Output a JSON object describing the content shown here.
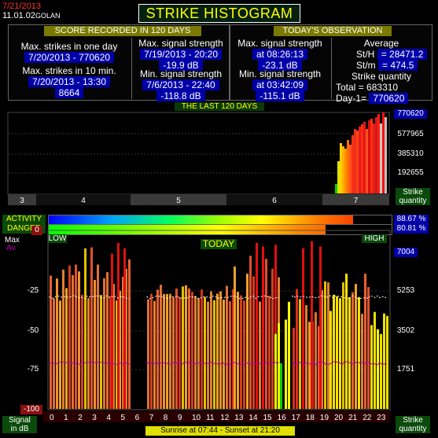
{
  "header": {
    "date": "7/21/2013",
    "version": "11.01.02",
    "station": "GOLAN",
    "title": "STRIKE HISTOGRAM"
  },
  "score": {
    "heading": "SCORE RECORDED IN 120 DAYS",
    "max_strikes_day_label": "Max. strikes in one day",
    "max_strikes_day_value": "7/20/2013 - 770620",
    "max_strikes_10min_label": "Max. strikes in 10 min.",
    "max_strikes_10min_date": "7/20/2013 - 13:30",
    "max_strikes_10min_value": "8664",
    "max_signal_label": "Max. signal strength",
    "max_signal_date": "7/19/2013 - 20:20",
    "max_signal_value": "-19.9 dB",
    "min_signal_label": "Min. signal strength",
    "min_signal_date": "7/6/2013 - 22:40",
    "min_signal_value": "-118.8 dB"
  },
  "today_obs": {
    "heading": "TODAY'S OBSERVATION",
    "max_signal_label": "Max. signal strength",
    "max_signal_time": "at 08:26:13",
    "max_signal_value": "-23.1 dB",
    "min_signal_label": "Min. signal strength",
    "min_signal_time": "at 03:42:09",
    "min_signal_value": "-115.1 dB",
    "average_label": "Average",
    "sth_label": "St/H",
    "sth_value": "= 28471.2",
    "stm_label": "St/m",
    "stm_value": "= 474.5",
    "strike_qty_label": "Strike quantity",
    "total_label": "Total",
    "total_value": "= 683310",
    "day1_label": "Day-1=",
    "day1_value": "770620"
  },
  "last120": {
    "heading": "THE LAST 120 DAYS",
    "ticks": [
      "770620",
      "577965",
      "385310",
      "192655"
    ],
    "months": [
      "3",
      "4",
      "5",
      "6",
      "7"
    ],
    "ylabel_line1": "Strike",
    "ylabel_line2": "quantity"
  },
  "meters": {
    "activity_label": "ACTIVITY",
    "danger_label": "DANGER",
    "activity_value": "88.67 %",
    "danger_value": "80.81 %",
    "activity_fraction": 0.8867,
    "danger_fraction": 0.8081,
    "low_label": "LOW",
    "high_label": "HIGH"
  },
  "today": {
    "heading": "TODAY",
    "max_label": "Max",
    "av_label": "Av.",
    "left_ticks": [
      "0",
      "-25",
      "-50",
      "-75",
      "-100"
    ],
    "right_ticks": [
      "7004",
      "5253",
      "3502",
      "1751"
    ],
    "hours": [
      "0",
      "1",
      "2",
      "3",
      "4",
      "5",
      "6",
      "7",
      "8",
      "9",
      "10",
      "11",
      "12",
      "13",
      "14",
      "15",
      "16",
      "17",
      "18",
      "19",
      "20",
      "21",
      "22",
      "23"
    ],
    "signal_label_line1": "Signal",
    "signal_label_line2": "in dB",
    "strike_label_line1": "Strike",
    "strike_label_line2": "quantity",
    "sun_text": "Sunrise at 07:44  -  Sunset at 21:20"
  }
}
